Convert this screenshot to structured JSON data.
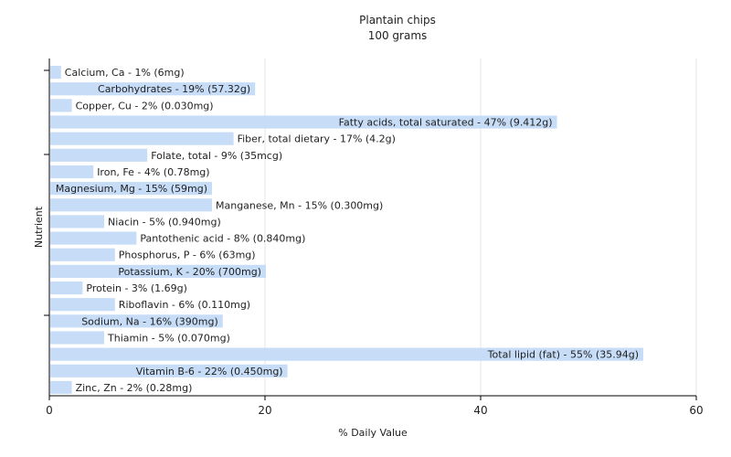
{
  "chart_data": {
    "type": "bar",
    "orientation": "horizontal",
    "title": "Plantain chips",
    "subtitle": "100 grams",
    "xlabel": "% Daily Value",
    "ylabel": "Nutrient",
    "xlim": [
      0,
      60
    ],
    "xticks": [
      0,
      20,
      40,
      60
    ],
    "grid": "vertical",
    "bar_color": "#c6dcf7",
    "categories": [
      "Calcium, Ca",
      "Carbohydrates",
      "Copper, Cu",
      "Fatty acids, total saturated",
      "Fiber, total dietary",
      "Folate, total",
      "Iron, Fe",
      "Magnesium, Mg",
      "Manganese, Mn",
      "Niacin",
      "Pantothenic acid",
      "Phosphorus, P",
      "Potassium, K",
      "Protein",
      "Riboflavin",
      "Sodium, Na",
      "Thiamin",
      "Total lipid (fat)",
      "Vitamin B-6",
      "Zinc, Zn"
    ],
    "values": [
      1,
      19,
      2,
      47,
      17,
      9,
      4,
      15,
      15,
      5,
      8,
      6,
      20,
      3,
      6,
      16,
      5,
      55,
      22,
      2
    ],
    "labels": [
      "Calcium, Ca - 1% (6mg)",
      "Carbohydrates - 19% (57.32g)",
      "Copper, Cu - 2% (0.030mg)",
      "Fatty acids, total saturated - 47% (9.412g)",
      "Fiber, total dietary - 17% (4.2g)",
      "Folate, total - 9% (35mcg)",
      "Iron, Fe - 4% (0.78mg)",
      "Magnesium, Mg - 15% (59mg)",
      "Manganese, Mn - 15% (0.300mg)",
      "Niacin - 5% (0.940mg)",
      "Pantothenic acid - 8% (0.840mg)",
      "Phosphorus, P - 6% (63mg)",
      "Potassium, K - 20% (700mg)",
      "Protein - 3% (1.69g)",
      "Riboflavin - 6% (0.110mg)",
      "Sodium, Na - 16% (390mg)",
      "Thiamin - 5% (0.070mg)",
      "Total lipid (fat) - 55% (35.94g)",
      "Vitamin B-6 - 22% (0.450mg)",
      "Zinc, Zn - 2% (0.28mg)"
    ]
  }
}
